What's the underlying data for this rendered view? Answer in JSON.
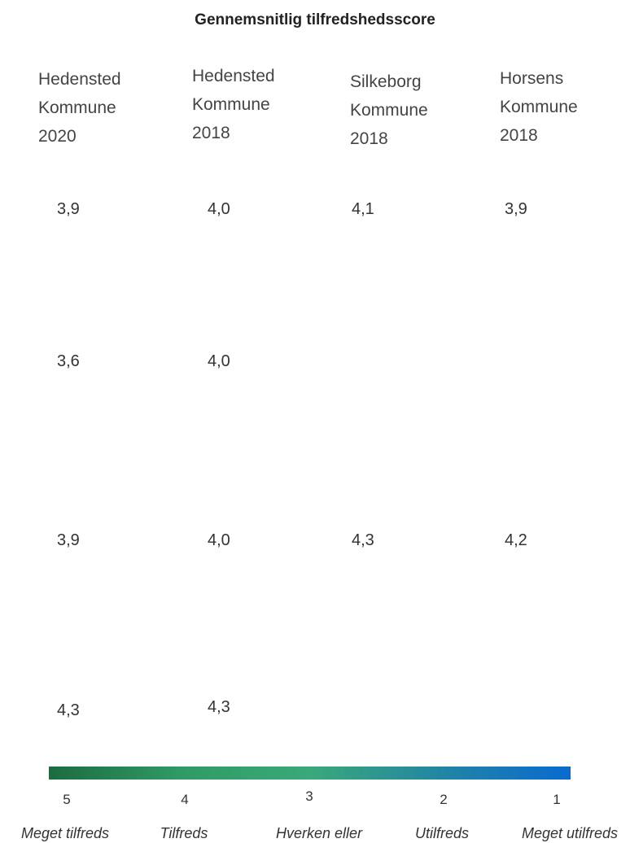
{
  "header": {
    "title": "Gennemsnitlig tilfredshedsscore"
  },
  "table": {
    "columns": [
      [
        "Hedensted",
        "Kommune",
        "2020"
      ],
      [
        "Hedensted",
        "Kommune",
        "2018"
      ],
      [
        "Silkeborg",
        "Kommune",
        "2018"
      ],
      [
        "Horsens",
        "Kommune",
        "2018"
      ]
    ],
    "rows": [
      [
        "3,9",
        "4,0",
        "4,1",
        "3,9"
      ],
      [
        "3,6",
        "4,0"
      ],
      [
        "3,9",
        "4,0",
        "4,3",
        "4,2"
      ],
      [
        "4,3",
        "4,3"
      ]
    ]
  },
  "legend": {
    "ticks": [
      "5",
      "4",
      "3",
      "2",
      "1"
    ],
    "labels": [
      "Meget tilfreds",
      "Tilfreds",
      "Hverken eller",
      "Utilfreds",
      "Meget utilfreds"
    ]
  }
}
